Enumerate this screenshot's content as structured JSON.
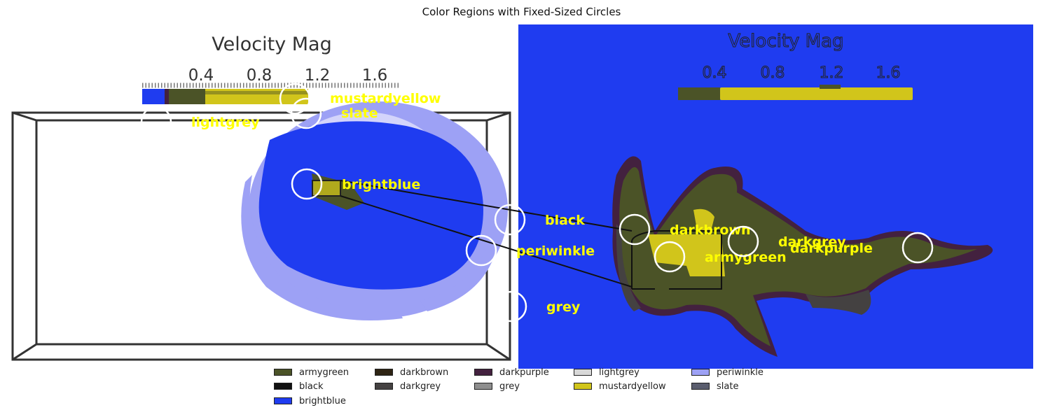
{
  "title": "Color Regions with Fixed-Sized Circles",
  "left_panel": {
    "colorbar_title": "Velocity Mag",
    "ticks": [
      "0.4",
      "0.8",
      "1.2",
      "1.6"
    ]
  },
  "right_panel": {
    "colorbar_title": "Velocity Mag",
    "ticks": [
      "0.4",
      "0.8",
      "1.2",
      "1.6"
    ]
  },
  "markers": [
    {
      "label": "mustardyellow"
    },
    {
      "label": "slate"
    },
    {
      "label": "lightgrey"
    },
    {
      "label": "brightblue"
    },
    {
      "label": "black"
    },
    {
      "label": "periwinkle"
    },
    {
      "label": "grey"
    },
    {
      "label": "darkbrown"
    },
    {
      "label": "armygreen"
    },
    {
      "label": "darkgrey"
    },
    {
      "label": "darkpurple"
    }
  ],
  "legend": [
    {
      "label": "armygreen",
      "color": "#4b5327"
    },
    {
      "label": "black",
      "color": "#111111"
    },
    {
      "label": "brightblue",
      "color": "#1f3cf0"
    },
    {
      "label": "darkbrown",
      "color": "#2e2414"
    },
    {
      "label": "darkgrey",
      "color": "#444141"
    },
    {
      "label": "darkpurple",
      "color": "#43213f"
    },
    {
      "label": "grey",
      "color": "#8e8e8e"
    },
    {
      "label": "lightgrey",
      "color": "#d8d8d8"
    },
    {
      "label": "mustardyellow",
      "color": "#d1c51b"
    },
    {
      "label": "periwinkle",
      "color": "#9da1f5"
    },
    {
      "label": "slate",
      "color": "#5a5d6e"
    }
  ],
  "colors": {
    "brightblue": "#1f3cf0",
    "periwinkle": "#9da1f5",
    "armygreen": "#4b5327",
    "mustardyellow": "#d1c51b",
    "darkpurple": "#43213f",
    "darkgrey": "#444141",
    "label_yellow": "#ffff00"
  }
}
